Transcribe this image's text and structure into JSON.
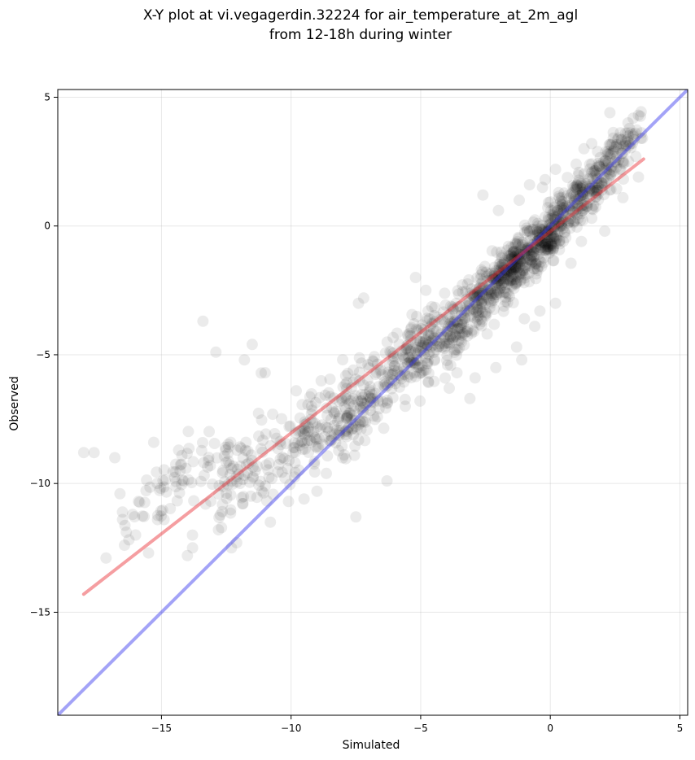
{
  "chart_data": {
    "type": "scatter",
    "title_line1": "X-Y plot at vi.vegagerdin.32224 for air_temperature_at_2m_agl",
    "title_line2": "from 12-18h during winter",
    "xlabel": "Simulated",
    "ylabel": "Observed",
    "xlim": [
      -19,
      5.3
    ],
    "ylim": [
      -19,
      5.3
    ],
    "xticks": [
      -15,
      -10,
      -5,
      0,
      5
    ],
    "yticks": [
      -15,
      -10,
      -5,
      0,
      5
    ],
    "tick_labels_x": [
      "−15",
      "−10",
      "−5",
      "0",
      "5"
    ],
    "tick_labels_y": [
      "−15",
      "−10",
      "−5",
      "0",
      "5"
    ],
    "grid": true,
    "point_color": "#000000",
    "point_alpha": 0.08,
    "fit_line": {
      "color": "#e8282e",
      "x": [
        -18,
        3.6
      ],
      "y": [
        -14.3,
        2.6
      ]
    },
    "identity_line": {
      "color": "#3333ee",
      "x": [
        -19,
        5.3
      ],
      "y": [
        -19,
        5.3
      ]
    },
    "clusters": [
      {
        "cx": -14.5,
        "cy": -10.0,
        "sx": 1.0,
        "sy": 1.0,
        "n": 70
      },
      {
        "cx": -11.8,
        "cy": -9.5,
        "sx": 0.8,
        "sy": 1.4,
        "n": 90
      },
      {
        "cx": -9.5,
        "cy": -8.2,
        "sx": 0.7,
        "sy": 1.2,
        "n": 80
      },
      {
        "cx": -7.5,
        "cy": -7.0,
        "sx": 0.7,
        "sy": 1.3,
        "n": 140
      },
      {
        "cx": -5.5,
        "cy": -5.2,
        "sx": 0.8,
        "sy": 1.2,
        "n": 160
      },
      {
        "cx": -3.5,
        "cy": -3.8,
        "sx": 0.8,
        "sy": 1.0,
        "n": 170
      },
      {
        "cx": -1.8,
        "cy": -2.0,
        "sx": 0.7,
        "sy": 0.9,
        "n": 230
      },
      {
        "cx": -0.3,
        "cy": -0.6,
        "sx": 0.7,
        "sy": 0.8,
        "n": 250
      },
      {
        "cx": 1.2,
        "cy": 1.2,
        "sx": 0.7,
        "sy": 0.8,
        "n": 160
      },
      {
        "cx": 2.5,
        "cy": 2.8,
        "sx": 0.5,
        "sy": 0.6,
        "n": 90
      }
    ],
    "points": [
      [
        -18.0,
        -8.8
      ],
      [
        -17.6,
        -8.8
      ],
      [
        -16.8,
        -9.0
      ],
      [
        -16.6,
        -10.4
      ],
      [
        -16.5,
        -11.4
      ],
      [
        -16.0,
        -12.0
      ],
      [
        -15.5,
        -12.7
      ],
      [
        -15.3,
        -8.4
      ],
      [
        -14.9,
        -11.4
      ],
      [
        -14.0,
        -12.8
      ],
      [
        -13.8,
        -12.5
      ],
      [
        -13.3,
        -10.8
      ],
      [
        -12.8,
        -11.8
      ],
      [
        -12.9,
        -4.9
      ],
      [
        -13.4,
        -3.7
      ],
      [
        -12.3,
        -12.5
      ],
      [
        -12.1,
        -12.3
      ],
      [
        -11.8,
        -5.2
      ],
      [
        -11.5,
        -4.6
      ],
      [
        -11.0,
        -5.7
      ],
      [
        -9.8,
        -6.4
      ],
      [
        -10.8,
        -11.5
      ],
      [
        -10.1,
        -10.7
      ],
      [
        -9.5,
        -10.6
      ],
      [
        -9.0,
        -10.3
      ],
      [
        -7.5,
        -11.3
      ],
      [
        -6.3,
        -9.9
      ],
      [
        -7.4,
        -3.0
      ],
      [
        -7.2,
        -2.8
      ],
      [
        -7.6,
        -5.6
      ],
      [
        -5.2,
        -2.0
      ],
      [
        -4.8,
        -2.5
      ],
      [
        -3.9,
        -6.3
      ],
      [
        -3.6,
        -5.7
      ],
      [
        -3.1,
        -6.7
      ],
      [
        -2.9,
        -5.9
      ],
      [
        -2.1,
        -5.5
      ],
      [
        -1.3,
        -4.7
      ],
      [
        -1.0,
        -3.6
      ],
      [
        -1.1,
        -5.2
      ],
      [
        -0.6,
        -3.9
      ],
      [
        -0.4,
        -3.3
      ],
      [
        0.2,
        -3.0
      ],
      [
        -2.6,
        1.2
      ],
      [
        -2.0,
        0.6
      ],
      [
        -1.2,
        1.0
      ],
      [
        -0.8,
        1.6
      ],
      [
        -0.3,
        1.5
      ],
      [
        0.5,
        -0.6
      ],
      [
        1.2,
        -0.6
      ],
      [
        2.1,
        -0.2
      ],
      [
        1.6,
        0.3
      ],
      [
        2.8,
        1.1
      ],
      [
        3.4,
        1.9
      ],
      [
        3.3,
        2.7
      ],
      [
        3.5,
        3.4
      ],
      [
        3.0,
        4.0
      ],
      [
        3.4,
        4.3
      ],
      [
        2.3,
        4.4
      ],
      [
        2.9,
        3.6
      ],
      [
        1.6,
        3.2
      ],
      [
        1.0,
        2.4
      ],
      [
        1.3,
        3.0
      ],
      [
        0.2,
        2.2
      ],
      [
        -0.2,
        1.8
      ]
    ]
  }
}
